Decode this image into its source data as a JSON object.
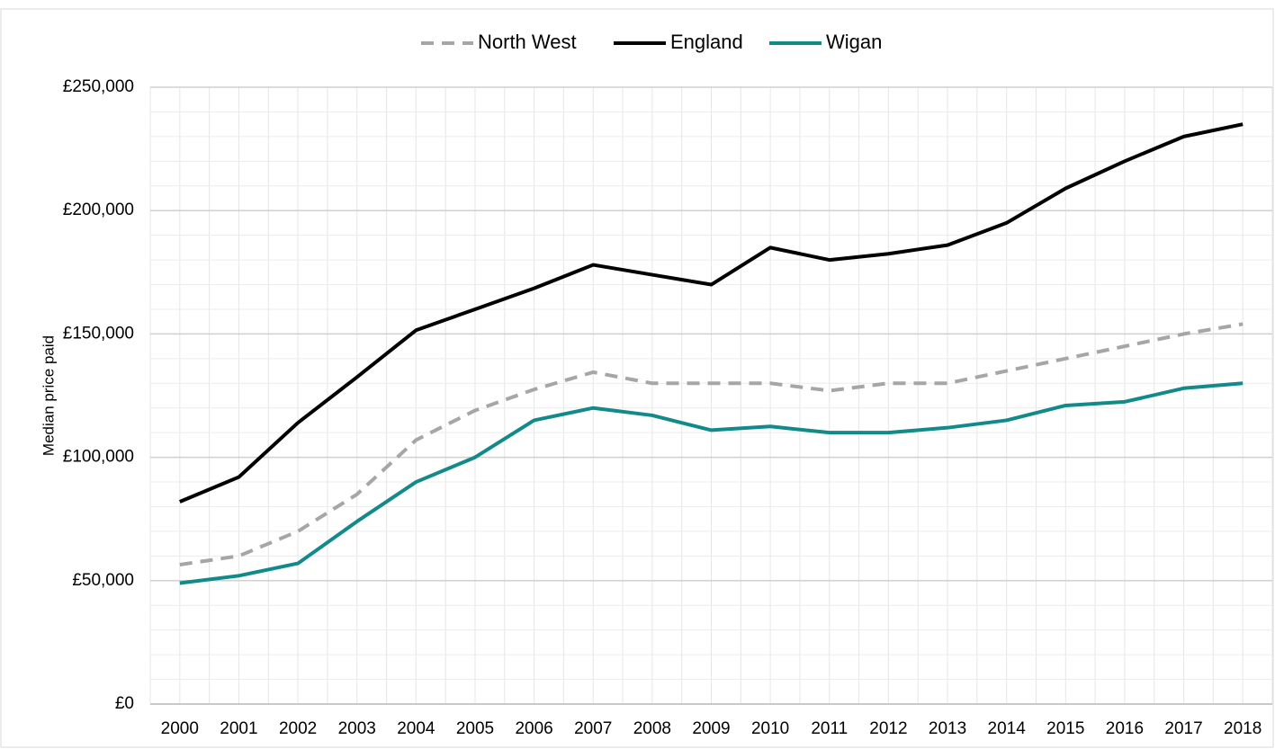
{
  "chart_data": {
    "type": "line",
    "y_label": "Median price paid",
    "categories": [
      "2000",
      "2001",
      "2002",
      "2003",
      "2004",
      "2005",
      "2006",
      "2007",
      "2008",
      "2009",
      "2010",
      "2011",
      "2012",
      "2013",
      "2014",
      "2015",
      "2016",
      "2017",
      "2018"
    ],
    "series": [
      {
        "name": "North West",
        "color": "#a6a6a6",
        "dashed": true,
        "values": [
          56500,
          60000,
          70000,
          85000,
          107000,
          119000,
          127500,
          134500,
          130000,
          130000,
          130000,
          127000,
          130000,
          130000,
          135000,
          140000,
          145000,
          150000,
          154000
        ]
      },
      {
        "name": "England",
        "color": "#000000",
        "dashed": false,
        "values": [
          82000,
          92000,
          114000,
          132500,
          151500,
          160000,
          168500,
          178000,
          174000,
          170000,
          185000,
          180000,
          182500,
          186000,
          195000,
          209000,
          220000,
          230000,
          235000
        ]
      },
      {
        "name": "Wigan",
        "color": "#138a8a",
        "dashed": false,
        "values": [
          49000,
          52000,
          57000,
          74000,
          90000,
          100000,
          115000,
          120000,
          117000,
          111000,
          112500,
          110000,
          110000,
          112000,
          115000,
          121000,
          122500,
          128000,
          130000
        ]
      }
    ],
    "ylim": [
      0,
      250000
    ],
    "yticks": [
      {
        "value": 0,
        "label": "£0"
      },
      {
        "value": 50000,
        "label": "£50,000"
      },
      {
        "value": 100000,
        "label": "£100,000"
      },
      {
        "value": 150000,
        "label": "£150,000"
      },
      {
        "value": 200000,
        "label": "£200,000"
      },
      {
        "value": 250000,
        "label": "£250,000"
      }
    ],
    "grid": true,
    "legend": "top"
  }
}
